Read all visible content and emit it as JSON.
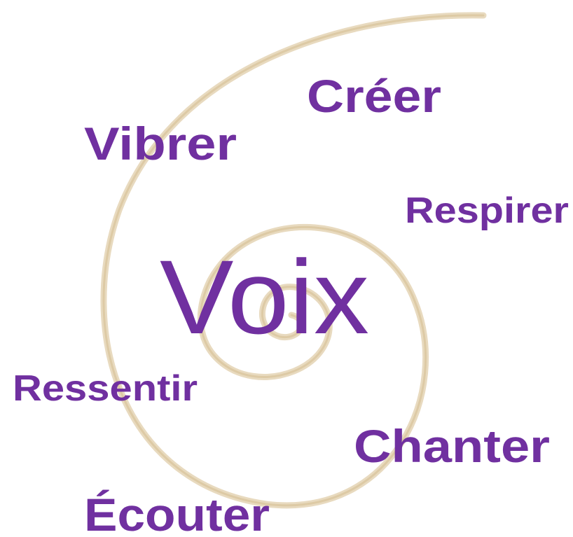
{
  "center_word": "Voix",
  "words": [
    "Créer",
    "Vibrer",
    "Respirer",
    "Ressentir",
    "Chanter",
    "Écouter"
  ]
}
